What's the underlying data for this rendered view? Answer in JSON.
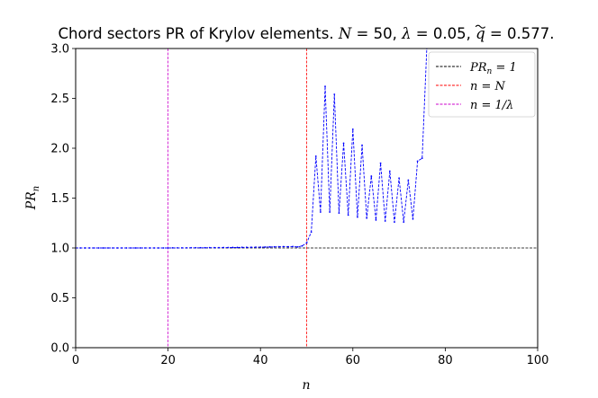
{
  "chart_data": {
    "type": "line",
    "title_parts": {
      "prefix": "Chord sectors PR of Krylov elements. ",
      "N_label": "N",
      "N_value": " = 50, ",
      "lambda_label": "λ",
      "lambda_value": " = 0.05, ",
      "q_label": "q",
      "q_value": " = 0.577."
    },
    "xlabel": "n",
    "ylabel": {
      "main": "PR",
      "sub": "n"
    },
    "xlim": [
      0,
      100
    ],
    "ylim": [
      0,
      3.0
    ],
    "xticks": [
      0,
      20,
      40,
      60,
      80,
      100
    ],
    "yticks": [
      0.0,
      0.5,
      1.0,
      1.5,
      2.0,
      2.5,
      3.0
    ],
    "xtick_labels": [
      "0",
      "20",
      "40",
      "60",
      "80",
      "100"
    ],
    "ytick_labels": [
      "0.0",
      "0.5",
      "1.0",
      "1.5",
      "2.0",
      "2.5",
      "3.0"
    ],
    "grid": false,
    "legend_position": "top-right",
    "legend": [
      {
        "label_main": "PR",
        "label_sub": "n",
        "label_rest": " = 1",
        "color": "#000000",
        "style": "dashed"
      },
      {
        "label_main": "n = N",
        "label_sub": "",
        "label_rest": "",
        "color": "#ff0000",
        "style": "dashed"
      },
      {
        "label_main": "n = 1/λ",
        "label_sub": "",
        "label_rest": "",
        "color": "#cc00cc",
        "style": "dashed"
      }
    ],
    "reference_lines": [
      {
        "orientation": "horizontal",
        "value": 1.0,
        "color": "#000000"
      },
      {
        "orientation": "vertical",
        "value": 50,
        "color": "#ff0000"
      },
      {
        "orientation": "vertical",
        "value": 20,
        "color": "#cc00cc"
      }
    ],
    "series": [
      {
        "color": "#0000ff",
        "style": "dashed-with-markers",
        "x": [
          0,
          1,
          2,
          3,
          4,
          5,
          6,
          7,
          8,
          9,
          10,
          11,
          12,
          13,
          14,
          15,
          16,
          17,
          18,
          19,
          20,
          21,
          22,
          23,
          24,
          25,
          26,
          27,
          28,
          29,
          30,
          31,
          32,
          33,
          34,
          35,
          36,
          37,
          38,
          39,
          40,
          41,
          42,
          43,
          44,
          45,
          46,
          47,
          48,
          49,
          50,
          51,
          52,
          53,
          54,
          55,
          56,
          57,
          58,
          59,
          60,
          61,
          62,
          63,
          64,
          65,
          66,
          67,
          68,
          69,
          70,
          71,
          72,
          73,
          74,
          75,
          76
        ],
        "y": [
          1.0,
          1.0,
          1.0,
          1.0,
          1.0,
          1.0,
          1.0,
          1.0,
          1.0,
          1.0,
          1.0,
          1.0,
          1.0,
          1.0,
          1.0,
          1.0,
          1.0,
          1.0,
          1.0,
          1.0,
          1.0,
          1.001,
          1.001,
          1.001,
          1.001,
          1.002,
          1.002,
          1.002,
          1.002,
          1.003,
          1.003,
          1.003,
          1.004,
          1.004,
          1.005,
          1.005,
          1.006,
          1.006,
          1.007,
          1.008,
          1.008,
          1.009,
          1.01,
          1.011,
          1.012,
          1.013,
          1.012,
          1.014,
          1.01,
          1.02,
          1.05,
          1.16,
          1.92,
          1.36,
          2.62,
          1.36,
          2.54,
          1.35,
          2.05,
          1.33,
          2.19,
          1.31,
          2.03,
          1.3,
          1.72,
          1.28,
          1.85,
          1.27,
          1.77,
          1.26,
          1.7,
          1.26,
          1.68,
          1.29,
          1.87,
          1.9,
          3.0
        ]
      }
    ]
  }
}
